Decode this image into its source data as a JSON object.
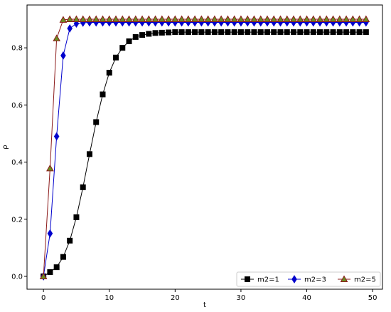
{
  "chart_data": {
    "type": "line",
    "title": "",
    "xlabel": "t",
    "ylabel": "ρ",
    "xlim": [
      -2.5,
      51.5
    ],
    "ylim": [
      -0.045,
      0.95
    ],
    "xticks": [
      0,
      10,
      20,
      30,
      40,
      50
    ],
    "yticks": [
      0.0,
      0.2,
      0.4,
      0.6,
      0.8
    ],
    "ytick_labels": [
      "0.0",
      "0.2",
      "0.4",
      "0.6",
      "0.8"
    ],
    "grid": false,
    "legend_position": "lower-right",
    "x": [
      0,
      1,
      2,
      3,
      4,
      5,
      6,
      7,
      8,
      9,
      10,
      11,
      12,
      13,
      14,
      15,
      16,
      17,
      18,
      19,
      20,
      21,
      22,
      23,
      24,
      25,
      26,
      27,
      28,
      29,
      30,
      31,
      32,
      33,
      34,
      35,
      36,
      37,
      38,
      39,
      40,
      41,
      42,
      43,
      44,
      45,
      46,
      47,
      48,
      49
    ],
    "series": [
      {
        "name": "m2=1",
        "color": "#000000",
        "marker": "square",
        "values": [
          0.0,
          0.015,
          0.032,
          0.068,
          0.125,
          0.207,
          0.312,
          0.428,
          0.54,
          0.637,
          0.713,
          0.766,
          0.8,
          0.823,
          0.838,
          0.845,
          0.849,
          0.852,
          0.853,
          0.854,
          0.855,
          0.855,
          0.855,
          0.855,
          0.855,
          0.855,
          0.855,
          0.855,
          0.855,
          0.855,
          0.855,
          0.855,
          0.855,
          0.855,
          0.855,
          0.855,
          0.855,
          0.855,
          0.855,
          0.855,
          0.855,
          0.855,
          0.855,
          0.855,
          0.855,
          0.855,
          0.855,
          0.855,
          0.855,
          0.855
        ]
      },
      {
        "name": "m2=3",
        "color": "#0000cc",
        "marker": "diamond",
        "values": [
          0.0,
          0.15,
          0.49,
          0.773,
          0.868,
          0.885,
          0.888,
          0.889,
          0.889,
          0.889,
          0.889,
          0.889,
          0.889,
          0.889,
          0.889,
          0.889,
          0.889,
          0.889,
          0.889,
          0.889,
          0.889,
          0.889,
          0.889,
          0.889,
          0.889,
          0.889,
          0.889,
          0.889,
          0.889,
          0.889,
          0.889,
          0.889,
          0.889,
          0.889,
          0.889,
          0.889,
          0.889,
          0.889,
          0.889,
          0.889,
          0.889,
          0.889,
          0.889,
          0.889,
          0.889,
          0.889,
          0.889,
          0.889,
          0.889,
          0.889
        ]
      },
      {
        "name": "m2=5",
        "color": "#8b1a1a",
        "marker_fill": "#6b8e23",
        "marker": "triangle",
        "values": [
          0.0,
          0.378,
          0.833,
          0.898,
          0.9,
          0.9,
          0.9,
          0.9,
          0.9,
          0.9,
          0.9,
          0.9,
          0.9,
          0.9,
          0.9,
          0.9,
          0.9,
          0.9,
          0.9,
          0.9,
          0.9,
          0.9,
          0.9,
          0.9,
          0.9,
          0.9,
          0.9,
          0.9,
          0.9,
          0.9,
          0.9,
          0.9,
          0.9,
          0.9,
          0.9,
          0.9,
          0.9,
          0.9,
          0.9,
          0.9,
          0.9,
          0.9,
          0.9,
          0.9,
          0.9,
          0.9,
          0.9,
          0.9,
          0.9,
          0.9
        ]
      }
    ]
  }
}
